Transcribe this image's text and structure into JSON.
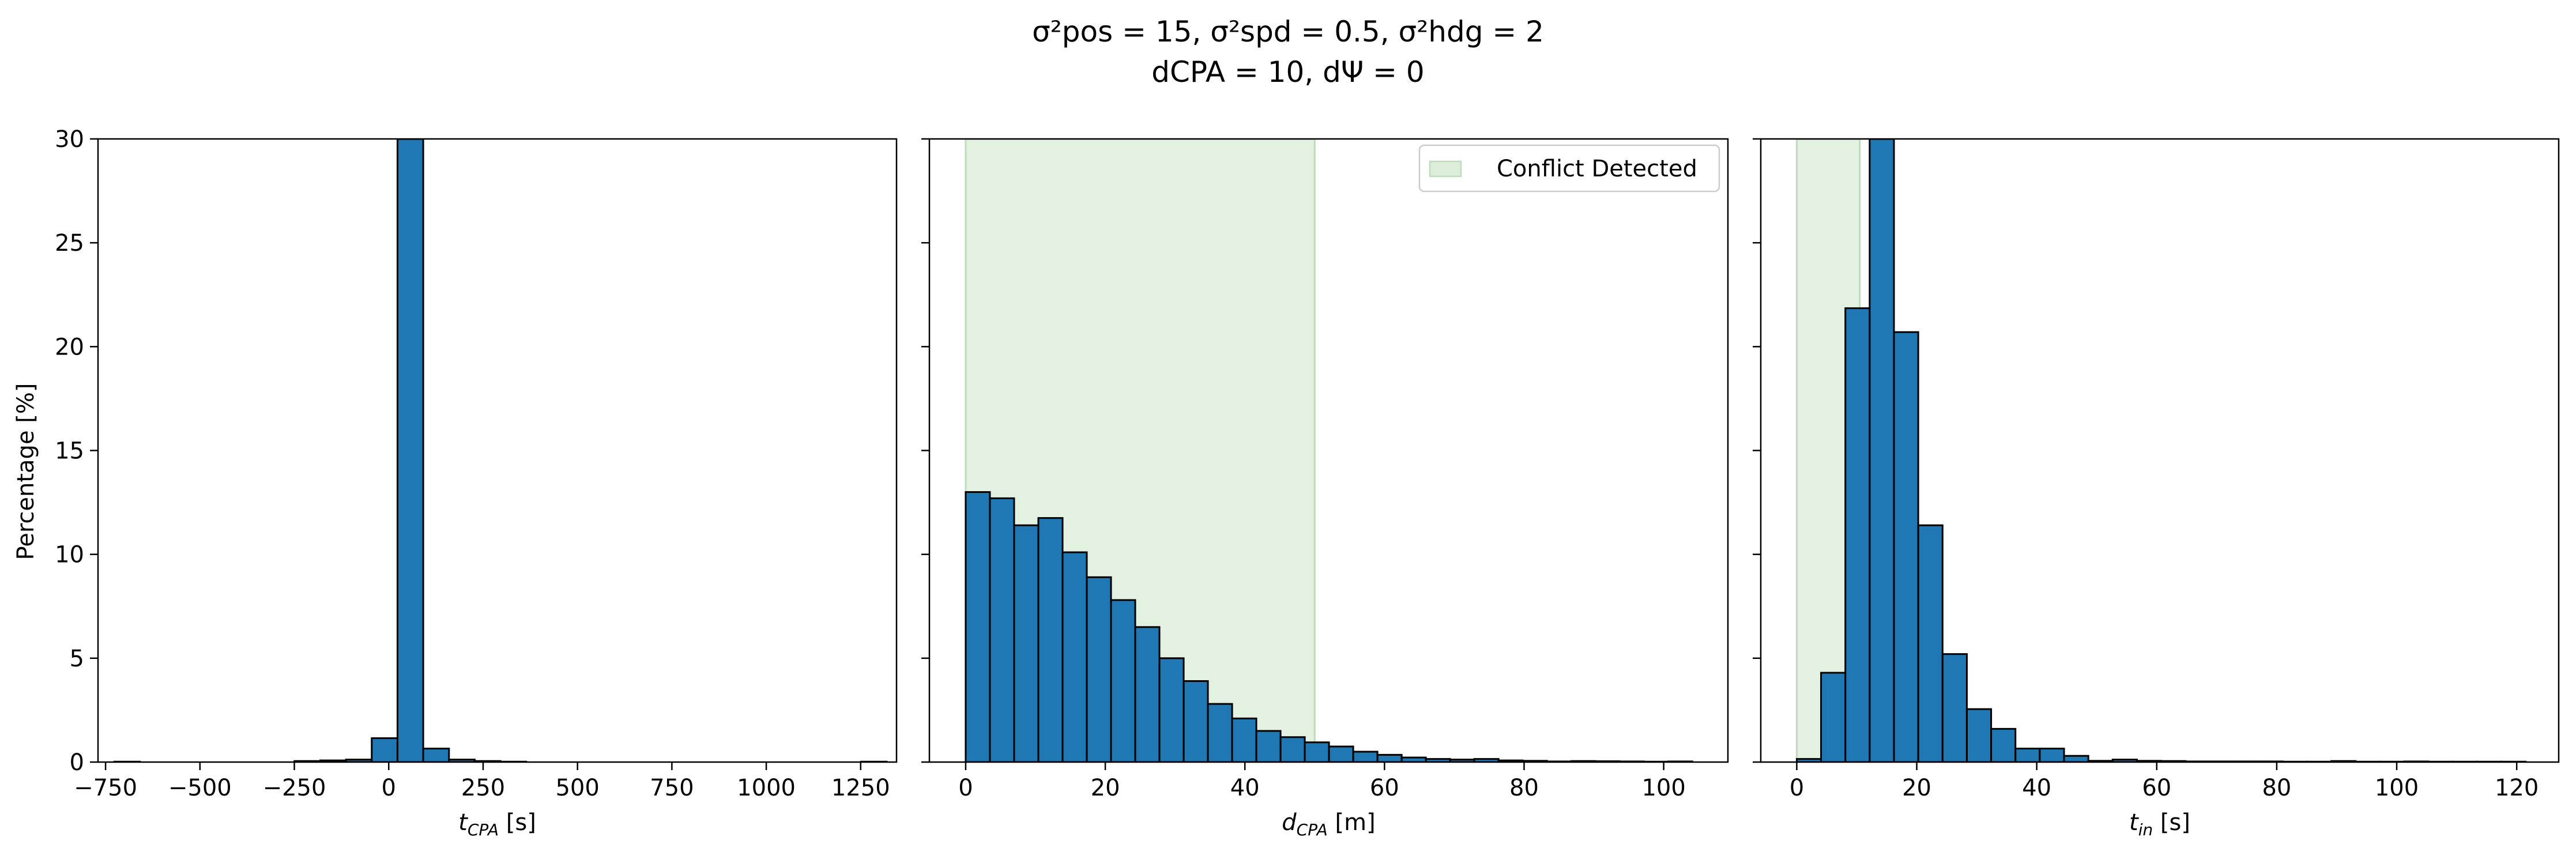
{
  "figure": {
    "title_line1": "σ²pos = 15, σ²spd = 0.5, σ²hdg = 2",
    "title_line2": "dCPA = 10, dΨ = 0",
    "ylabel": "Percentage [%]"
  },
  "colors": {
    "bar_fill": "#1f77b4",
    "bar_edge": "#000000",
    "conflict_fill": "#dcedda",
    "conflict_edge": "#bcdcbc"
  },
  "chart_data": [
    {
      "type": "bar",
      "subplot": "tCPA",
      "xlabel_main": "t",
      "xlabel_sub": "CPA",
      "xlabel_unit": "[s]",
      "xlim": [
        -770,
        1345
      ],
      "ylim": [
        0,
        30
      ],
      "xticks": [
        -750,
        -500,
        -250,
        0,
        250,
        500,
        750,
        1000,
        1250
      ],
      "xtick_labels": [
        "−750",
        "−500",
        "−250",
        "0",
        "250",
        "500",
        "750",
        "1000",
        "1250"
      ],
      "yticks": [
        0,
        5,
        10,
        15,
        20,
        25,
        30
      ],
      "ytick_labels": [
        "0",
        "5",
        "10",
        "15",
        "20",
        "25",
        "30"
      ],
      "bin_start": -727,
      "bin_width": 68.2,
      "values": [
        0.02,
        0,
        0,
        0,
        0,
        0,
        0,
        0.05,
        0.08,
        0.12,
        1.15,
        30.0,
        0.65,
        0.12,
        0.05,
        0.02,
        0,
        0,
        0,
        0,
        0,
        0,
        0,
        0,
        0,
        0,
        0,
        0,
        0,
        0.02
      ],
      "conflict_range": null,
      "legend": null
    },
    {
      "type": "bar",
      "subplot": "dCPA",
      "xlabel_main": "d",
      "xlabel_sub": "CPA",
      "xlabel_unit": "[m]",
      "xlim": [
        -5.2,
        109.2
      ],
      "ylim": [
        0,
        30
      ],
      "xticks": [
        0,
        20,
        40,
        60,
        80,
        100
      ],
      "xtick_labels": [
        "0",
        "20",
        "40",
        "60",
        "80",
        "100"
      ],
      "yticks": [
        0,
        5,
        10,
        15,
        20,
        25,
        30
      ],
      "ytick_labels": [],
      "bin_start": 0,
      "bin_width": 3.47,
      "values": [
        13.0,
        12.7,
        11.4,
        11.75,
        10.1,
        8.9,
        7.8,
        6.5,
        5.0,
        3.9,
        2.8,
        2.1,
        1.5,
        1.2,
        0.95,
        0.75,
        0.5,
        0.35,
        0.22,
        0.15,
        0.12,
        0.15,
        0.08,
        0.06,
        0.03,
        0.05,
        0.04,
        0.03,
        0.02,
        0.03
      ],
      "conflict_range": [
        0,
        50
      ],
      "legend": "Conflict Detected"
    },
    {
      "type": "bar",
      "subplot": "tin",
      "xlabel_main": "t",
      "xlabel_sub": "in",
      "xlabel_unit": "[s]",
      "xlim": [
        -6,
        127
      ],
      "ylim": [
        0,
        30
      ],
      "xticks": [
        0,
        20,
        40,
        60,
        80,
        100,
        120
      ],
      "xtick_labels": [
        "0",
        "20",
        "40",
        "60",
        "80",
        "100",
        "120"
      ],
      "yticks": [
        0,
        5,
        10,
        15,
        20,
        25,
        30
      ],
      "ytick_labels": [],
      "bin_start": 0,
      "bin_width": 4.05,
      "values": [
        0.15,
        4.3,
        21.85,
        30.0,
        20.7,
        11.4,
        5.2,
        2.55,
        1.6,
        0.65,
        0.65,
        0.3,
        0.06,
        0.12,
        0.06,
        0.05,
        0.03,
        0.03,
        0.03,
        0.03,
        0.02,
        0.02,
        0.05,
        0.02,
        0.02,
        0.03,
        0.02,
        0.02,
        0.02,
        0.02
      ],
      "conflict_range": [
        0,
        10.5
      ],
      "legend": null
    }
  ]
}
